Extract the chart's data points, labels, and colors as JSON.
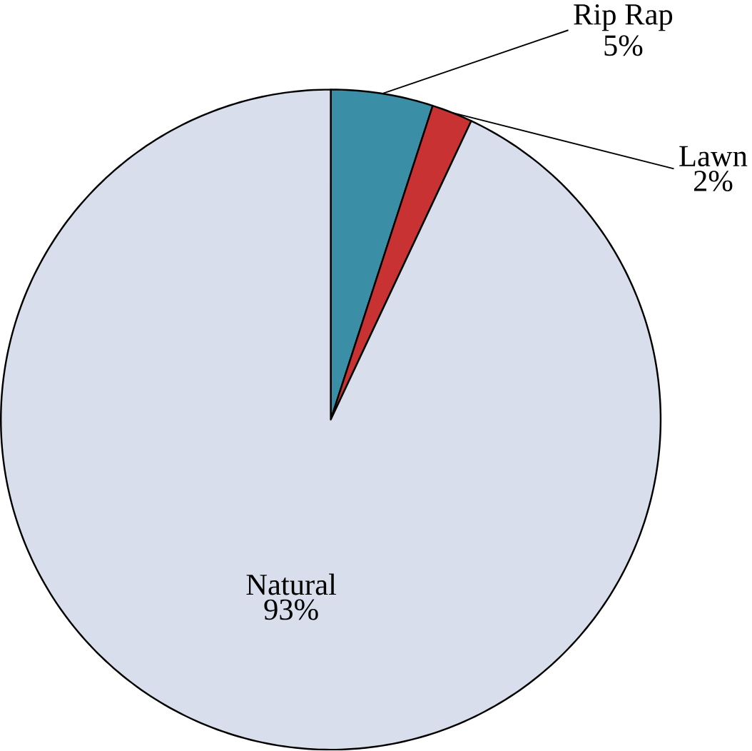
{
  "chart_data": {
    "type": "pie",
    "categories": [
      "Rip Rap",
      "Lawn",
      "Natural"
    ],
    "values": [
      5,
      2,
      93
    ],
    "colors": [
      "#3a8fa6",
      "#c83232",
      "#d8deeb"
    ],
    "value_labels": [
      "5%",
      "2%",
      "93%"
    ]
  }
}
